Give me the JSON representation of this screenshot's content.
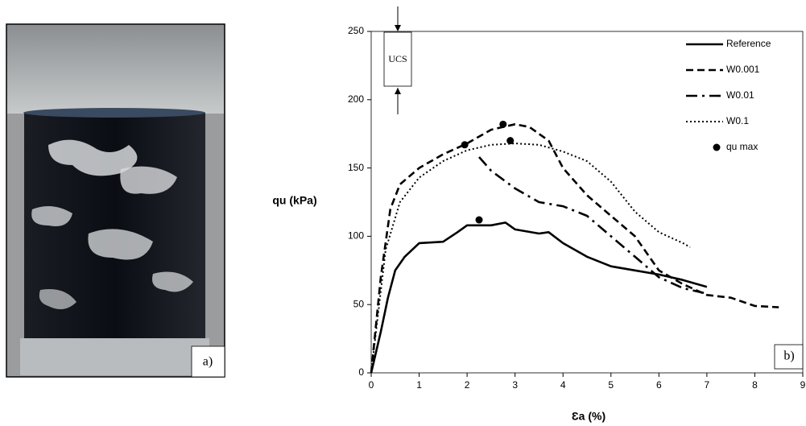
{
  "photo_label": "a)",
  "chart_data": {
    "type": "line",
    "x_label": "Ɛa (%)",
    "y_label": "qu (kPa)",
    "annotations": [
      "UCS",
      "b)"
    ],
    "xlim": [
      0,
      9
    ],
    "ylim": [
      0,
      250
    ],
    "xticks": [
      0,
      1,
      2,
      3,
      4,
      5,
      6,
      7,
      8,
      9
    ],
    "yticks": [
      0,
      50,
      100,
      150,
      200,
      250
    ],
    "series": [
      {
        "name": "Reference",
        "color": "#000000",
        "style": "solid",
        "x": [
          0,
          0.2,
          0.35,
          0.5,
          0.7,
          1,
          1.5,
          1.8,
          2,
          2.5,
          2.8,
          3,
          3.5,
          3.7,
          4,
          4.5,
          5,
          5.5,
          6,
          6.5,
          7
        ],
        "values": [
          0,
          30,
          55,
          75,
          85,
          95,
          96,
          103,
          108,
          108,
          110,
          105,
          102,
          103,
          95,
          85,
          78,
          75,
          72,
          68,
          63
        ]
      },
      {
        "name": "W0.001",
        "color": "#000000",
        "style": "dashed",
        "x": [
          0,
          0.2,
          0.4,
          0.6,
          1,
          1.5,
          2,
          2.5,
          3,
          3.3,
          3.7,
          4,
          4.5,
          5,
          5.5,
          6,
          6.5,
          7,
          7.5,
          8,
          8.5
        ],
        "values": [
          0,
          70,
          120,
          138,
          150,
          160,
          168,
          178,
          182,
          180,
          170,
          150,
          130,
          115,
          100,
          75,
          65,
          57,
          55,
          49,
          48
        ]
      },
      {
        "name": "W0.01",
        "color": "#000000",
        "style": "dashdot",
        "x": [
          2.25,
          2.5,
          3,
          3.5,
          4,
          4.5,
          5,
          5.5,
          6,
          6.5,
          7
        ],
        "values": [
          158,
          148,
          135,
          125,
          122,
          115,
          100,
          85,
          70,
          62,
          58
        ]
      },
      {
        "name": "W0.1",
        "color": "#000000",
        "style": "dotted",
        "x": [
          0,
          0.3,
          0.6,
          1,
          1.5,
          2,
          2.5,
          3,
          3.5,
          4,
          4.5,
          5,
          5.5,
          6,
          6.5,
          6.65
        ],
        "values": [
          0,
          90,
          125,
          143,
          155,
          163,
          167,
          168,
          167,
          162,
          155,
          140,
          118,
          103,
          95,
          92
        ]
      },
      {
        "name": "qu max",
        "color": "#000000",
        "style": "marker",
        "x": [
          2.25,
          2.75,
          1.95,
          2.9
        ],
        "values": [
          112,
          182,
          167,
          170
        ]
      }
    ]
  }
}
